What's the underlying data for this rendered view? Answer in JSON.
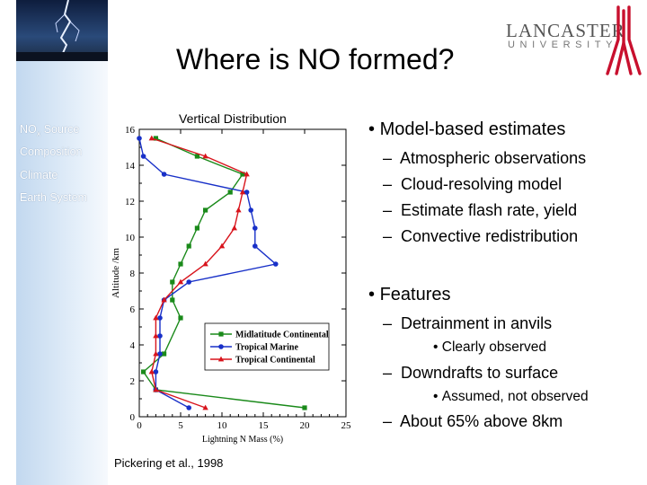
{
  "slide": {
    "title": "Where is NO formed?",
    "logo": {
      "name": "LANCASTER",
      "sub": "UNIVERSITY"
    },
    "nav": [
      {
        "main": "NO",
        "sub": "x",
        "rest": " Source"
      },
      {
        "label": "Composition"
      },
      {
        "label": "Climate"
      },
      {
        "label": "Earth System"
      }
    ],
    "chart_caption": "Vertical Distribution",
    "citation": "Pickering et al., 1998",
    "bullets": {
      "model_based": "Model-based estimates",
      "model_items": [
        "Atmospheric observations",
        "Cloud-resolving model",
        "Estimate flash rate, yield",
        "Convective redistribution"
      ],
      "features": "Features",
      "detrainment": "Detrainment in anvils",
      "detrainment_note": "Clearly observed",
      "downdrafts": "Downdrafts to surface",
      "downdrafts_note": "Assumed, not observed",
      "about": "About 65% above 8km"
    },
    "dash": "–",
    "dot": "•"
  },
  "colors": {
    "midlatitude": "#1a8a1a",
    "marine": "#1830c8",
    "continental": "#d8141c"
  },
  "chart_data": {
    "type": "line",
    "xlabel": "Lightning N Mass (%)",
    "ylabel": "Altitude /km",
    "xlim": [
      0,
      25
    ],
    "ylim": [
      0,
      16
    ],
    "xticks": [
      0,
      5,
      10,
      15,
      20,
      25
    ],
    "yticks": [
      0,
      2,
      4,
      6,
      8,
      10,
      12,
      14,
      16
    ],
    "legend_position": "lower-right",
    "series": [
      {
        "name": "Midlatitude Continental",
        "marker": "square",
        "color": "#1a8a1a",
        "points": [
          [
            20,
            0.5
          ],
          [
            2,
            1.5
          ],
          [
            0.5,
            2.5
          ],
          [
            3,
            3.5
          ],
          [
            5,
            5.5
          ],
          [
            4,
            6.5
          ],
          [
            4,
            7.5
          ],
          [
            5,
            8.5
          ],
          [
            6,
            9.5
          ],
          [
            7,
            10.5
          ],
          [
            8,
            11.5
          ],
          [
            11,
            12.5
          ],
          [
            12.5,
            13.5
          ],
          [
            7,
            14.5
          ],
          [
            2,
            15.5
          ]
        ]
      },
      {
        "name": "Tropical Marine",
        "marker": "circle",
        "color": "#1830c8",
        "points": [
          [
            6,
            0.5
          ],
          [
            2,
            1.5
          ],
          [
            2,
            2.5
          ],
          [
            2.5,
            3.5
          ],
          [
            2.5,
            4.5
          ],
          [
            2.5,
            5.5
          ],
          [
            3,
            6.5
          ],
          [
            6,
            7.5
          ],
          [
            16.5,
            8.5
          ],
          [
            14,
            9.5
          ],
          [
            14,
            10.5
          ],
          [
            13.5,
            11.5
          ],
          [
            13,
            12.5
          ],
          [
            3,
            13.5
          ],
          [
            0.5,
            14.5
          ],
          [
            0,
            15.5
          ]
        ]
      },
      {
        "name": "Tropical Continental",
        "marker": "triangle",
        "color": "#d8141c",
        "points": [
          [
            8,
            0.5
          ],
          [
            2,
            1.5
          ],
          [
            1.5,
            2.5
          ],
          [
            2,
            3.5
          ],
          [
            2,
            4.5
          ],
          [
            2,
            5.5
          ],
          [
            3,
            6.5
          ],
          [
            5,
            7.5
          ],
          [
            8,
            8.5
          ],
          [
            10,
            9.5
          ],
          [
            11.5,
            10.5
          ],
          [
            12,
            11.5
          ],
          [
            12.5,
            12.5
          ],
          [
            13,
            13.5
          ],
          [
            8,
            14.5
          ],
          [
            1.5,
            15.5
          ]
        ]
      }
    ]
  }
}
